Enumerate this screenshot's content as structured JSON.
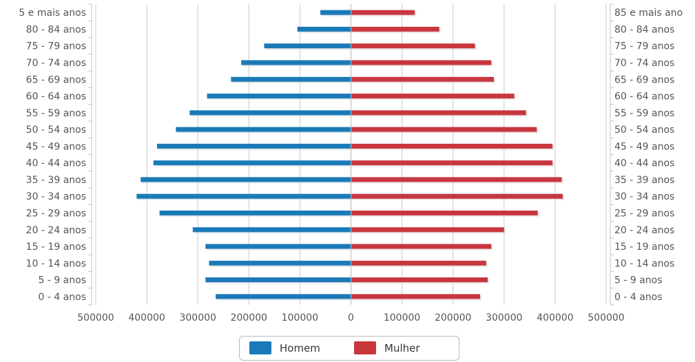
{
  "chart_data": {
    "type": "bar",
    "orientation": "horizontal-population-pyramid",
    "categories": [
      "0 - 4 anos",
      "5 - 9 anos",
      "10 - 14 anos",
      "15 - 19 anos",
      "20 - 24 anos",
      "25 - 29 anos",
      "30 - 34 anos",
      "35 - 39 anos",
      "40 - 44 anos",
      "45 - 49 anos",
      "50 - 54 anos",
      "55 - 59 anos",
      "60 - 64 anos",
      "65 - 69 anos",
      "70 - 74 anos",
      "75 - 79 anos",
      "80 - 84 anos",
      "85 e mais anos"
    ],
    "left_axis_labels": [
      "0 - 4 anos",
      "5 - 9 anos",
      "10 - 14 anos",
      "15 - 19 anos",
      "20 - 24 anos",
      "25 - 29 anos",
      "30 - 34 anos",
      "35 - 39 anos",
      "40 - 44 anos",
      "45 - 49 anos",
      "50 - 54 anos",
      "55 - 59 anos",
      "60 - 64 anos",
      "65 - 69 anos",
      "70 - 74 anos",
      "75 - 79 anos",
      "80 - 84 anos",
      "5 e mais anos"
    ],
    "right_axis_labels": [
      "0 - 4 anos",
      "5 - 9 anos",
      "10 - 14 anos",
      "15 - 19 anos",
      "20 - 24 anos",
      "25 - 29 anos",
      "30 - 34 anos",
      "35 - 39 anos",
      "40 - 44 anos",
      "45 - 49 anos",
      "50 - 54 anos",
      "55 - 59 anos",
      "60 - 64 anos",
      "65 - 69 anos",
      "70 - 74 anos",
      "75 - 79 anos",
      "80 - 84 anos",
      "85 e mais ano"
    ],
    "series": [
      {
        "name": "Homem",
        "color": "#1a7ab8",
        "side": "left",
        "values": [
          265000,
          285000,
          278000,
          285000,
          310000,
          375000,
          420000,
          412000,
          387000,
          380000,
          343000,
          316000,
          282000,
          235000,
          215000,
          170000,
          105000,
          60000
        ]
      },
      {
        "name": "Mulher",
        "color": "#c8373e",
        "side": "right",
        "values": [
          253000,
          268000,
          265000,
          275000,
          300000,
          366000,
          415000,
          413000,
          395000,
          395000,
          364000,
          343000,
          320000,
          280000,
          275000,
          243000,
          173000,
          125000
        ]
      }
    ],
    "x_ticks": [
      "500000",
      "400000",
      "300000",
      "200000",
      "100000",
      "0",
      "100000",
      "200000",
      "300000",
      "400000",
      "500000"
    ],
    "xlim": [
      -500000,
      500000
    ],
    "grid": true,
    "legend_position": "bottom"
  },
  "legend": {
    "homem_label": "Homem",
    "mulher_label": "Mulher",
    "homem_color": "#1a7ab8",
    "mulher_color": "#c8373e"
  }
}
